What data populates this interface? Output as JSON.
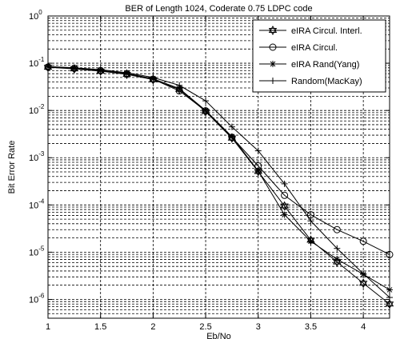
{
  "chart_data": {
    "type": "line",
    "title": "BER of Length 1024, Coderate 0.75 LDPC code",
    "xlabel": "Eb/No",
    "ylabel": "Bit Error Rate",
    "xlim": [
      1,
      4.25
    ],
    "ylim": [
      4e-07,
      1
    ],
    "yscale": "log",
    "grid": "on",
    "legend_position": "top-right",
    "x_ticks": [
      1,
      1.5,
      2,
      2.5,
      3,
      3.5,
      4
    ],
    "x_tick_labels": [
      "1",
      "1.5",
      "2",
      "2.5",
      "3",
      "3.5",
      "4"
    ],
    "y_tick_exponents": [
      0,
      -1,
      -2,
      -3,
      -4,
      -5,
      -6
    ],
    "y_tick_base": "10",
    "y_tick_sup": [
      "0",
      "-1",
      "-2",
      "-3",
      "-4",
      "-5",
      "-6"
    ],
    "colors": {
      "line": "#000000",
      "grid": "#000000",
      "background": "#ffffff"
    },
    "series": [
      {
        "name": "eIRA Circul. Interl.",
        "marker": "hexagram",
        "x": [
          1,
          1.25,
          1.5,
          1.75,
          2,
          2.25,
          2.5,
          2.75,
          3,
          3.25,
          3.5,
          3.75,
          4,
          4.25
        ],
        "y": [
          0.082,
          0.076,
          0.068,
          0.058,
          0.045,
          0.028,
          0.0095,
          0.0026,
          0.00051,
          9.5e-05,
          1.8e-05,
          6.2e-06,
          2.2e-06,
          8e-07
        ]
      },
      {
        "name": "eIRA Circul.",
        "marker": "circle",
        "x": [
          1,
          1.25,
          1.5,
          1.75,
          2,
          2.25,
          2.5,
          2.75,
          3,
          3.25,
          3.5,
          3.75,
          4,
          4.25
        ],
        "y": [
          0.083,
          0.078,
          0.07,
          0.06,
          0.046,
          0.026,
          0.0098,
          0.0027,
          0.00067,
          0.00016,
          6.2e-05,
          3e-05,
          1.7e-05,
          8.9e-06
        ]
      },
      {
        "name": "eIRA Rand(Yang)",
        "marker": "asterisk",
        "x": [
          1,
          1.25,
          1.5,
          1.75,
          2,
          2.25,
          2.5,
          2.75,
          3,
          3.25,
          3.5,
          3.75,
          4,
          4.25
        ],
        "y": [
          0.084,
          0.077,
          0.07,
          0.061,
          0.047,
          0.029,
          0.01,
          0.0028,
          0.00052,
          6.2e-05,
          1.7e-05,
          7.1e-06,
          3.4e-06,
          1.6e-06
        ]
      },
      {
        "name": "Random(MacKay)",
        "marker": "plus",
        "x": [
          1,
          1.25,
          1.5,
          1.75,
          2,
          2.25,
          2.5,
          2.75,
          3,
          3.25,
          3.5,
          3.75,
          4,
          4.25
        ],
        "y": [
          0.085,
          0.08,
          0.073,
          0.063,
          0.05,
          0.034,
          0.016,
          0.0045,
          0.0014,
          0.00028,
          4.6e-05,
          1.2e-05,
          3.5e-06,
          1.1e-06
        ]
      }
    ]
  }
}
